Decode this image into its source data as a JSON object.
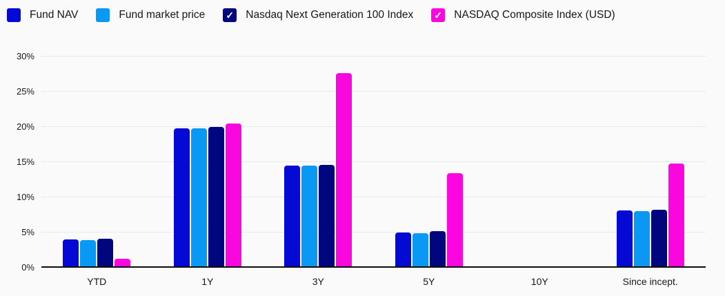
{
  "legend": {
    "check_glyph": "✓",
    "items": [
      {
        "label": "Fund NAV",
        "color": "#0509d4",
        "checked": false
      },
      {
        "label": "Fund market price",
        "color": "#0a98f5",
        "checked": false
      },
      {
        "label": "Nasdaq Next Generation 100 Index",
        "color": "#00077e",
        "checked": true
      },
      {
        "label": "NASDAQ Composite Index (USD)",
        "color": "#fa06de",
        "checked": true
      }
    ]
  },
  "chart_data": {
    "type": "bar",
    "title": "",
    "xlabel": "",
    "ylabel": "",
    "unit": "%",
    "categories": [
      "YTD",
      "1Y",
      "3Y",
      "5Y",
      "10Y",
      "Since incept."
    ],
    "series": [
      {
        "name": "Fund NAV",
        "color": "#0509d4",
        "values": [
          3.8,
          19.6,
          14.3,
          4.8,
          null,
          7.9
        ]
      },
      {
        "name": "Fund market price",
        "color": "#0a98f5",
        "values": [
          3.7,
          19.6,
          14.3,
          4.7,
          null,
          7.8
        ]
      },
      {
        "name": "Nasdaq Next Generation 100 Index",
        "color": "#00077e",
        "values": [
          3.9,
          19.8,
          14.4,
          5.0,
          null,
          8.0
        ]
      },
      {
        "name": "NASDAQ Composite Index (USD)",
        "color": "#fa06de",
        "values": [
          1.1,
          20.3,
          27.5,
          13.2,
          null,
          14.6
        ]
      }
    ],
    "ylim": [
      0,
      30
    ],
    "yticks": [
      {
        "value": 0,
        "label": "0%"
      },
      {
        "value": 5,
        "label": "5%"
      },
      {
        "value": 10,
        "label": "10%"
      },
      {
        "value": 15,
        "label": "15%"
      },
      {
        "value": 20,
        "label": "20%"
      },
      {
        "value": 25,
        "label": "25%"
      },
      {
        "value": 30,
        "label": "30%"
      }
    ],
    "grid": true,
    "legend_position": "top"
  },
  "style": {
    "background": "#fafafa",
    "gridline_color": "#e8e8e8",
    "axis_color": "#0d0d0d",
    "text_color": "#17171d"
  }
}
